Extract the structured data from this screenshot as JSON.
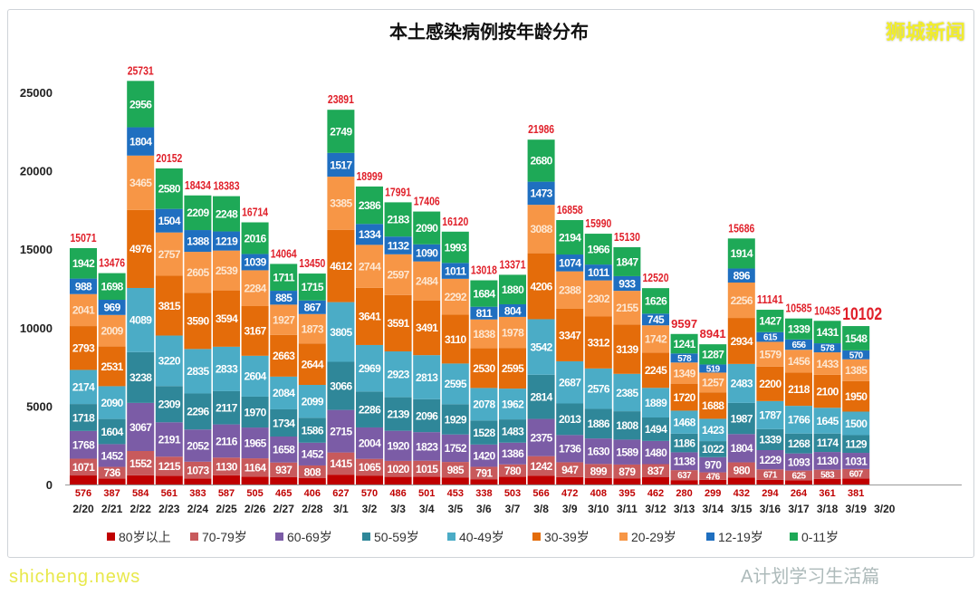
{
  "chart_data": {
    "type": "bar",
    "stacked": true,
    "title": "本土感染病例按年龄分布",
    "xlabel": "",
    "ylabel": "",
    "ylim": [
      0,
      27000
    ],
    "yticks": [
      0,
      5000,
      10000,
      15000,
      20000,
      25000
    ],
    "grid": false,
    "legend_position": "bottom",
    "categories": [
      "2/20",
      "2/21",
      "2/22",
      "2/23",
      "2/24",
      "2/25",
      "2/26",
      "2/27",
      "2/28",
      "3/1",
      "3/2",
      "3/3",
      "3/4",
      "3/5",
      "3/6",
      "3/7",
      "3/8",
      "3/9",
      "3/10",
      "3/11",
      "3/12",
      "3/13",
      "3/14",
      "3/15",
      "3/16",
      "3/17",
      "3/18",
      "3/19",
      "3/20"
    ],
    "series": [
      {
        "name": "80岁以上",
        "color": "#c00000",
        "values": [
          576,
          387,
          584,
          561,
          383,
          587,
          505,
          465,
          406,
          627,
          570,
          486,
          501,
          453,
          338,
          503,
          566,
          472,
          408,
          395,
          462,
          280,
          299,
          432,
          294,
          264,
          361,
          381,
          null
        ]
      },
      {
        "name": "70-79岁",
        "color": "#c85a5c",
        "values": [
          1071,
          736,
          1552,
          1215,
          1073,
          1130,
          1164,
          937,
          808,
          1415,
          1065,
          1020,
          1015,
          985,
          791,
          780,
          1242,
          947,
          899,
          879,
          837,
          637,
          476,
          980,
          671,
          625,
          583,
          607,
          null
        ]
      },
      {
        "name": "60-69岁",
        "color": "#7b5ca6",
        "values": [
          1768,
          1452,
          3067,
          2191,
          2052,
          2116,
          1965,
          1658,
          1452,
          2715,
          2004,
          1920,
          1823,
          1752,
          1420,
          1386,
          2375,
          1736,
          1630,
          1589,
          1480,
          1138,
          970,
          1804,
          1229,
          1093,
          1130,
          1031,
          null
        ]
      },
      {
        "name": "50-59岁",
        "color": "#2f8799",
        "values": [
          1718,
          1604,
          3238,
          2309,
          2296,
          2117,
          1970,
          1734,
          1586,
          3066,
          2286,
          2139,
          2096,
          1929,
          1528,
          1483,
          2814,
          2013,
          1886,
          1808,
          1494,
          1186,
          1022,
          1987,
          1339,
          1268,
          1174,
          1129,
          null
        ]
      },
      {
        "name": "40-49岁",
        "color": "#4bacc6",
        "values": [
          2174,
          2090,
          4089,
          3220,
          2835,
          2833,
          2604,
          2084,
          2099,
          3805,
          2969,
          2923,
          2813,
          2595,
          2078,
          1962,
          3542,
          2687,
          2576,
          2385,
          1889,
          1468,
          1423,
          2483,
          1787,
          1766,
          1645,
          1500,
          null
        ]
      },
      {
        "name": "30-39岁",
        "color": "#e46c0a",
        "values": [
          2793,
          2531,
          4976,
          3815,
          3590,
          3594,
          3167,
          2663,
          2644,
          4612,
          3641,
          3591,
          3491,
          3110,
          2530,
          2595,
          4206,
          3347,
          3312,
          3139,
          2245,
          1720,
          1688,
          2934,
          2200,
          2118,
          2100,
          1950,
          null
        ]
      },
      {
        "name": "20-29岁",
        "color": "#f79646",
        "values": [
          2041,
          2009,
          3465,
          2757,
          2605,
          2539,
          2284,
          1927,
          1873,
          3385,
          2744,
          2597,
          2484,
          2292,
          1838,
          1978,
          3088,
          2388,
          2302,
          2155,
          1742,
          1349,
          1257,
          2256,
          1579,
          1456,
          1433,
          1385,
          null
        ]
      },
      {
        "name": "12-19岁",
        "color": "#1f6fc0",
        "values": [
          988,
          969,
          1804,
          1504,
          1388,
          1219,
          1039,
          885,
          867,
          1517,
          1334,
          1132,
          1090,
          1011,
          811,
          804,
          1473,
          1074,
          1011,
          933,
          745,
          578,
          519,
          896,
          615,
          656,
          578,
          570,
          null
        ]
      },
      {
        "name": "0-11岁",
        "color": "#1ea957",
        "values": [
          1942,
          1698,
          2956,
          2580,
          2209,
          2248,
          2016,
          1711,
          1715,
          2749,
          2386,
          2183,
          2090,
          1993,
          1684,
          1880,
          2680,
          2194,
          1966,
          1847,
          1626,
          1241,
          1287,
          1914,
          1427,
          1339,
          1431,
          1548,
          null
        ]
      }
    ],
    "totals": [
      15071,
      13476,
      25731,
      20152,
      18434,
      18383,
      16714,
      14064,
      13450,
      23891,
      18999,
      17991,
      17406,
      16120,
      13018,
      13371,
      21986,
      16858,
      15990,
      15130,
      12520,
      9597,
      8941,
      15686,
      11141,
      10585,
      10435,
      10102,
      null
    ],
    "total_label_color": "#e0202a"
  },
  "watermarks": {
    "top_right": "狮城新闻",
    "bottom_left": "shicheng.news",
    "bottom_right": "A计划学习生活篇"
  }
}
